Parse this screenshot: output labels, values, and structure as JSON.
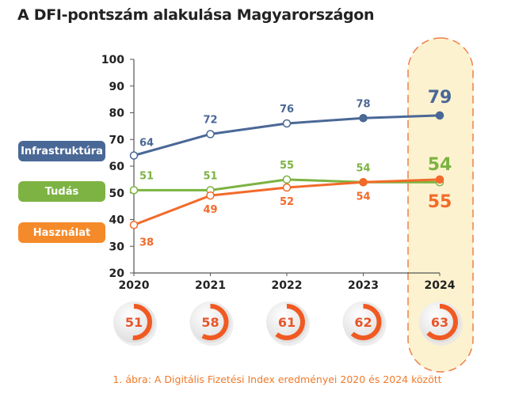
{
  "title": "A DFI-pontszám alakulása Magyarországon",
  "caption": "1. ábra: A Digitális Fizetési Index eredményei 2020 és 2024 között",
  "colors": {
    "Infrastruktúra": "#4a6896",
    "Tudás": "#7cb342",
    "Használat": "#f26a2a",
    "highlight_fill": "#fdf2cf",
    "highlight_border": "#ef7f4a"
  },
  "chart_data": {
    "type": "line",
    "title": "A DFI-pontszám alakulása Magyarországon",
    "x": [
      "2020",
      "2021",
      "2022",
      "2023",
      "2024"
    ],
    "ylim": [
      20,
      100
    ],
    "yticks": [
      "20",
      "30",
      "40",
      "50",
      "60",
      "70",
      "80",
      "90",
      "100"
    ],
    "legend_placement": "left",
    "highlighted_category": "2024",
    "series": [
      {
        "name": "Infrastruktúra",
        "values": [
          64,
          72,
          76,
          78,
          79
        ],
        "labels": [
          "64",
          "72",
          "76",
          "78",
          "79"
        ]
      },
      {
        "name": "Tudás",
        "values": [
          51,
          51,
          55,
          54,
          54
        ],
        "labels": [
          "51",
          "51",
          "55",
          "54",
          "54"
        ]
      },
      {
        "name": "Használat",
        "values": [
          38,
          49,
          52,
          54,
          55
        ],
        "labels": [
          "38",
          "49",
          "52",
          "54",
          "55"
        ]
      }
    ],
    "dfi_scores": {
      "values": [
        51,
        58,
        61,
        62,
        63
      ],
      "labels": [
        "51",
        "58",
        "61",
        "62",
        "63"
      ]
    }
  }
}
